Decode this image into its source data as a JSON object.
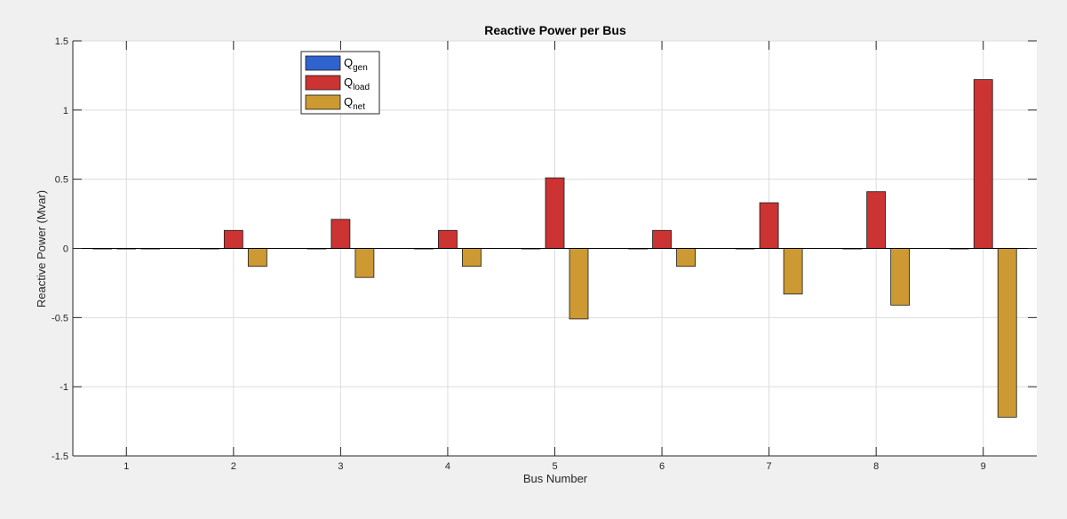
{
  "chart_data": {
    "type": "bar",
    "title": "Reactive Power per Bus",
    "xlabel": "Bus Number",
    "ylabel": "Reactive Power (Mvar)",
    "categories": [
      "1",
      "2",
      "3",
      "4",
      "5",
      "6",
      "7",
      "8",
      "9"
    ],
    "ylim": [
      -1.5,
      1.5
    ],
    "yticks": [
      "1.5",
      "1",
      "0.5",
      "0",
      "-0.5",
      "-1",
      "-1.5"
    ],
    "ytick_values": [
      1.5,
      1,
      0.5,
      0,
      -0.5,
      -1,
      -1.5
    ],
    "grid": true,
    "legend_position": "top-left (inside)",
    "series": [
      {
        "name": "Q",
        "sub": "gen",
        "color": "#2f64cf",
        "values": [
          0,
          0,
          0,
          0,
          0,
          0,
          0,
          0,
          0
        ]
      },
      {
        "name": "Q",
        "sub": "load",
        "color": "#cc3333",
        "values": [
          0,
          0.13,
          0.21,
          0.13,
          0.51,
          0.13,
          0.33,
          0.41,
          1.22
        ]
      },
      {
        "name": "Q",
        "sub": "net",
        "color": "#cc9933",
        "values": [
          0,
          -0.13,
          -0.21,
          -0.13,
          -0.51,
          -0.13,
          -0.33,
          -0.41,
          -1.22
        ]
      }
    ]
  }
}
